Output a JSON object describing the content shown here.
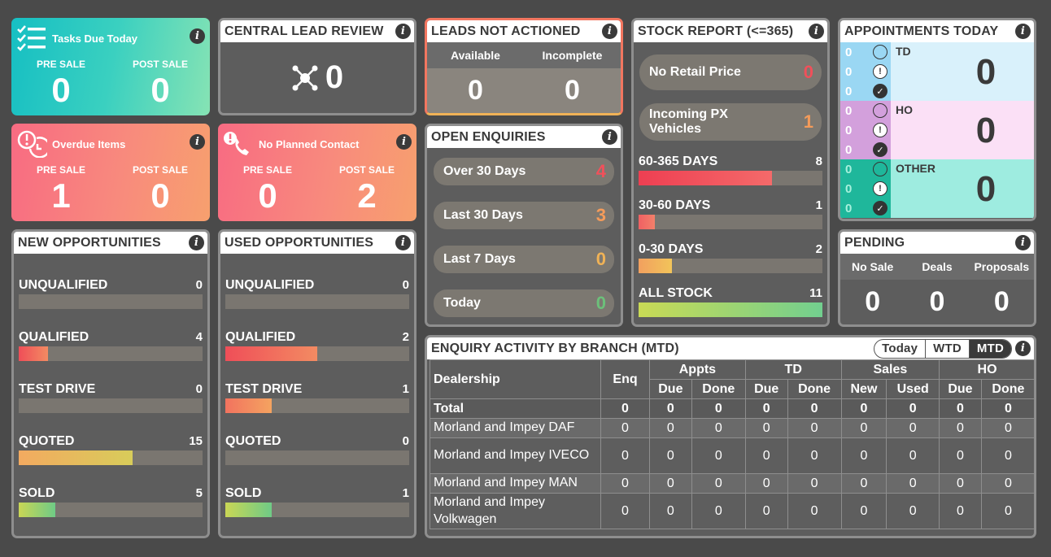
{
  "tasks_due": {
    "title": "Tasks Due Today",
    "icon": "checklist-icon",
    "pre_label": "PRE SALE",
    "post_label": "POST SALE",
    "pre_value": "0",
    "post_value": "0"
  },
  "overdue": {
    "title": "Overdue Items",
    "icon": "alarm-clock-icon",
    "pre_label": "PRE SALE",
    "post_label": "POST SALE",
    "pre_value": "1",
    "post_value": "0"
  },
  "no_contact": {
    "title": "No Planned Contact",
    "icon": "phone-alert-icon",
    "pre_label": "PRE SALE",
    "post_label": "POST SALE",
    "pre_value": "0",
    "post_value": "2"
  },
  "central_lead": {
    "title": "CENTRAL LEAD REVIEW",
    "value": "0"
  },
  "leads_not_actioned": {
    "title": "LEADS NOT ACTIONED",
    "available_label": "Available",
    "incomplete_label": "Incomplete",
    "available_value": "0",
    "incomplete_value": "0"
  },
  "open_enquiries": {
    "title": "OPEN ENQUIRIES",
    "items": [
      {
        "label": "Over 30 Days",
        "value": "4",
        "color": "#f0505a"
      },
      {
        "label": "Last 30 Days",
        "value": "3",
        "color": "#f49b5a"
      },
      {
        "label": "Last 7 Days",
        "value": "0",
        "color": "#f0b256"
      },
      {
        "label": "Today",
        "value": "0",
        "color": "#6cc07a"
      }
    ]
  },
  "stock_report": {
    "title": "STOCK REPORT (<=365)",
    "pills": [
      {
        "label": "No Retail Price",
        "value": "0",
        "color": "#f0505a"
      },
      {
        "label": "Incoming PX Vehicles",
        "value": "1",
        "color": "#f49b5a"
      }
    ],
    "bars": [
      {
        "label": "60-365 DAYS",
        "value": "8",
        "fraction": 0.727
      },
      {
        "label": "30-60 DAYS",
        "value": "1",
        "fraction": 0.09
      },
      {
        "label": "0-30 DAYS",
        "value": "2",
        "fraction": 0.18
      },
      {
        "label": "ALL STOCK",
        "value": "11",
        "fraction": 1.0
      }
    ]
  },
  "appointments": {
    "title": "APPOINTMENTS TODAY",
    "rows": [
      {
        "label": "TD",
        "total": "0",
        "counts": [
          "0",
          "0",
          "0"
        ],
        "bg": "#d9f1fb",
        "side": "#9ad7f3"
      },
      {
        "label": "HO",
        "total": "0",
        "counts": [
          "0",
          "0",
          "0"
        ],
        "bg": "#fbe0f6",
        "side": "#d3a0dc"
      },
      {
        "label": "OTHER",
        "total": "0",
        "counts": [
          "0",
          "0",
          "0"
        ],
        "bg": "#9eece0",
        "side": "#1fb79b"
      }
    ]
  },
  "pending": {
    "title": "PENDING",
    "no_sale_label": "No Sale",
    "deals_label": "Deals",
    "proposals_label": "Proposals",
    "no_sale": "0",
    "deals": "0",
    "proposals": "0"
  },
  "new_opps": {
    "title": "NEW OPPORTUNITIES",
    "rows": [
      {
        "label": "UNQUALIFIED",
        "value": "0",
        "fraction": 0
      },
      {
        "label": "QUALIFIED",
        "value": "4",
        "fraction": 0.16
      },
      {
        "label": "TEST DRIVE",
        "value": "0",
        "fraction": 0
      },
      {
        "label": "QUOTED",
        "value": "15",
        "fraction": 0.62
      },
      {
        "label": "SOLD",
        "value": "5",
        "fraction": 0.2
      }
    ]
  },
  "used_opps": {
    "title": "USED OPPORTUNITIES",
    "rows": [
      {
        "label": "UNQUALIFIED",
        "value": "0",
        "fraction": 0
      },
      {
        "label": "QUALIFIED",
        "value": "2",
        "fraction": 0.5
      },
      {
        "label": "TEST DRIVE",
        "value": "1",
        "fraction": 0.25
      },
      {
        "label": "QUOTED",
        "value": "0",
        "fraction": 0
      },
      {
        "label": "SOLD",
        "value": "1",
        "fraction": 0.25
      }
    ]
  },
  "enquiry_activity": {
    "title": "ENQUIRY ACTIVITY BY BRANCH (MTD)",
    "toggle": [
      "Today",
      "WTD",
      "MTD"
    ],
    "active": "MTD",
    "group_headers": {
      "appts": "Appts",
      "td": "TD",
      "sales": "Sales",
      "ho": "HO"
    },
    "col_dealership": "Dealership",
    "col_enq": "Enq",
    "sub_headers": [
      "Due",
      "Done",
      "Due",
      "Done",
      "New",
      "Used",
      "Due",
      "Done"
    ],
    "total_row": {
      "name": "Total",
      "values": [
        "0",
        "0",
        "0",
        "0",
        "0",
        "0",
        "0",
        "0",
        "0"
      ]
    },
    "rows": [
      {
        "name": "Morland and Impey DAF",
        "values": [
          "0",
          "0",
          "0",
          "0",
          "0",
          "0",
          "0",
          "0",
          "0"
        ]
      },
      {
        "name": "Morland and Impey IVECO",
        "values": [
          "0",
          "0",
          "0",
          "0",
          "0",
          "0",
          "0",
          "0",
          "0"
        ]
      },
      {
        "name": "Morland and Impey MAN",
        "values": [
          "0",
          "0",
          "0",
          "0",
          "0",
          "0",
          "0",
          "0",
          "0"
        ]
      },
      {
        "name": "Morland and Impey Volkwagen",
        "values": [
          "0",
          "0",
          "0",
          "0",
          "0",
          "0",
          "0",
          "0",
          "0"
        ]
      }
    ]
  }
}
